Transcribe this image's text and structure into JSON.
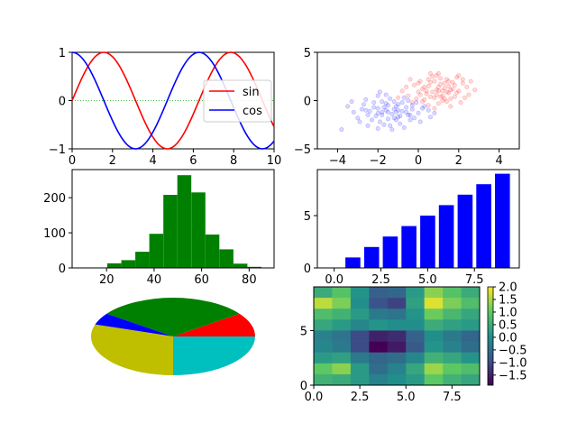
{
  "chart_data": [
    {
      "type": "line",
      "xlim": [
        0,
        10
      ],
      "ylim": [
        -1,
        1
      ],
      "x_ticks": [
        0,
        2,
        4,
        6,
        8,
        10
      ],
      "y_ticks": [
        -1,
        0,
        1
      ],
      "x_tick_labels": [
        "0",
        "2",
        "4",
        "6",
        "8",
        "10"
      ],
      "y_tick_labels": [
        "−1",
        "0",
        "1"
      ],
      "series": [
        {
          "name": "sin",
          "color": "#ff0000",
          "function": "sin",
          "x_start": 0,
          "x_end": 10,
          "samples": 101
        },
        {
          "name": "cos",
          "color": "#0000ff",
          "function": "cos",
          "x_start": 0,
          "x_end": 10,
          "samples": 101
        }
      ],
      "reference_line": {
        "y": 0,
        "color": "#00aa00",
        "style": "dotted"
      },
      "legend": {
        "position": "right",
        "entries": [
          "sin",
          "cos"
        ]
      },
      "grid": false
    },
    {
      "type": "scatter",
      "xlim": [
        -5,
        5
      ],
      "ylim": [
        -5,
        5
      ],
      "x_ticks": [
        -4,
        -2,
        0,
        2,
        4
      ],
      "y_ticks": [
        -5,
        0,
        5
      ],
      "x_tick_labels": [
        "−4",
        "−2",
        "0",
        "2",
        "4"
      ],
      "y_tick_labels": [
        "−5",
        "0",
        "5"
      ],
      "series": [
        {
          "color": "#ff0000",
          "points": [
            [
              1.0,
              1.0
            ],
            [
              0.5,
              1.5
            ],
            [
              1.5,
              0.8
            ],
            [
              0.8,
              2.0
            ],
            [
              1.2,
              0.5
            ],
            [
              0.2,
              1.2
            ],
            [
              1.8,
              1.6
            ],
            [
              0.6,
              0.4
            ],
            [
              1.4,
              2.2
            ],
            [
              0.9,
              1.1
            ],
            [
              0.0,
              0.9
            ],
            [
              1.1,
              1.7
            ],
            [
              2.0,
              1.0
            ],
            [
              0.3,
              0.1
            ],
            [
              1.6,
              0.2
            ],
            [
              0.7,
              2.5
            ],
            [
              1.3,
              1.3
            ],
            [
              -0.2,
              1.6
            ],
            [
              2.2,
              1.8
            ],
            [
              0.4,
              0.7
            ],
            [
              1.0,
              -0.3
            ],
            [
              1.7,
              1.2
            ],
            [
              0.1,
              2.0
            ],
            [
              2.5,
              0.6
            ],
            [
              -0.5,
              0.5
            ],
            [
              1.9,
              2.4
            ],
            [
              0.6,
              1.9
            ],
            [
              1.2,
              0.0
            ],
            [
              0.8,
              0.3
            ],
            [
              2.1,
              -0.2
            ],
            [
              1.5,
              1.5
            ],
            [
              -0.1,
              0.2
            ],
            [
              1.0,
              2.8
            ],
            [
              2.4,
              1.4
            ],
            [
              0.5,
              -0.5
            ],
            [
              1.4,
              0.9
            ],
            [
              0.9,
              0.6
            ],
            [
              -0.8,
              1.0
            ],
            [
              1.8,
              0.4
            ],
            [
              0.3,
              1.4
            ],
            [
              1.1,
              2.3
            ],
            [
              2.6,
              2.0
            ],
            [
              0.0,
              1.8
            ],
            [
              1.6,
              -0.6
            ],
            [
              0.7,
              0.9
            ],
            [
              1.3,
              0.2
            ],
            [
              -0.4,
              2.2
            ],
            [
              2.0,
              2.6
            ],
            [
              0.2,
              -0.1
            ],
            [
              1.7,
              1.9
            ],
            [
              1.5,
              2.0
            ],
            [
              0.4,
              1.0
            ],
            [
              2.3,
              0.3
            ],
            [
              1.0,
              1.4
            ],
            [
              -0.6,
              1.4
            ],
            [
              0.8,
              -0.8
            ],
            [
              1.9,
              0.8
            ],
            [
              0.6,
              2.8
            ],
            [
              1.2,
              1.0
            ],
            [
              2.8,
              1.1
            ],
            [
              -1.0,
              0.3
            ],
            [
              0.1,
              0.6
            ],
            [
              1.4,
              -0.1
            ],
            [
              0.9,
              2.6
            ],
            [
              1.6,
              1.1
            ],
            [
              -0.3,
              -0.2
            ],
            [
              2.2,
              2.2
            ],
            [
              0.5,
              2.2
            ],
            [
              1.1,
              0.4
            ],
            [
              1.3,
              1.8
            ]
          ]
        },
        {
          "color": "#0000ff",
          "points": [
            [
              -1.0,
              -1.0
            ],
            [
              -1.5,
              -0.5
            ],
            [
              -0.5,
              -1.5
            ],
            [
              -2.0,
              -0.8
            ],
            [
              -1.2,
              -1.8
            ],
            [
              -0.8,
              -0.2
            ],
            [
              -1.8,
              -1.2
            ],
            [
              -2.5,
              -1.5
            ],
            [
              -0.3,
              -0.9
            ],
            [
              -1.4,
              0.2
            ],
            [
              -1.1,
              -2.0
            ],
            [
              -2.2,
              -0.2
            ],
            [
              -0.6,
              -1.2
            ],
            [
              -1.7,
              -0.7
            ],
            [
              -0.9,
              -2.4
            ],
            [
              -2.8,
              -0.9
            ],
            [
              0.0,
              -1.3
            ],
            [
              -1.3,
              -1.4
            ],
            [
              -2.0,
              0.5
            ],
            [
              -0.4,
              -2.0
            ],
            [
              -1.6,
              -1.0
            ],
            [
              -3.0,
              -1.8
            ],
            [
              -0.7,
              0.3
            ],
            [
              -1.9,
              -2.2
            ],
            [
              -1.0,
              -0.4
            ],
            [
              -2.4,
              -1.1
            ],
            [
              0.3,
              -0.6
            ],
            [
              -1.2,
              -0.9
            ],
            [
              -3.5,
              -0.6
            ],
            [
              -0.2,
              -1.8
            ],
            [
              -1.5,
              -1.9
            ],
            [
              -2.6,
              0.1
            ],
            [
              -0.9,
              -1.6
            ],
            [
              -1.8,
              -0.1
            ],
            [
              0.5,
              -1.0
            ],
            [
              -2.1,
              -1.6
            ],
            [
              -1.4,
              -2.6
            ],
            [
              -0.5,
              0.0
            ],
            [
              -3.2,
              -1.2
            ],
            [
              -1.1,
              -0.6
            ],
            [
              -2.3,
              -2.0
            ],
            [
              0.1,
              -2.2
            ],
            [
              -1.6,
              0.6
            ],
            [
              -0.8,
              -1.1
            ],
            [
              -2.7,
              -0.4
            ],
            [
              -1.3,
              -3.0
            ],
            [
              -0.1,
              -0.2
            ],
            [
              -2.0,
              -1.3
            ],
            [
              -1.7,
              -2.5
            ],
            [
              0.6,
              -1.7
            ],
            [
              -2.9,
              -2.2
            ],
            [
              -0.6,
              -0.7
            ],
            [
              -1.9,
              0.9
            ],
            [
              -1.0,
              -1.7
            ],
            [
              -3.8,
              -3.0
            ],
            [
              -0.4,
              -1.5
            ],
            [
              -2.2,
              -0.7
            ],
            [
              -1.5,
              -1.2
            ],
            [
              0.2,
              -0.8
            ],
            [
              -1.2,
              -0.1
            ],
            [
              -2.5,
              -2.6
            ],
            [
              -0.7,
              -2.8
            ],
            [
              -1.8,
              -1.5
            ],
            [
              -3.3,
              -0.1
            ],
            [
              -1.1,
              -1.2
            ],
            [
              0.8,
              -1.3
            ],
            [
              -2.0,
              -2.9
            ],
            [
              -0.3,
              -0.5
            ],
            [
              -1.6,
              -0.3
            ],
            [
              -2.6,
              -1.0
            ]
          ]
        }
      ],
      "grid": false
    },
    {
      "type": "bar",
      "subtype": "histogram",
      "color": "#008000",
      "xlim": [
        5.5,
        90.5
      ],
      "ylim": [
        0,
        280
      ],
      "x_ticks": [
        20,
        40,
        60,
        80
      ],
      "y_ticks": [
        0,
        100,
        200
      ],
      "x_tick_labels": [
        "20",
        "40",
        "60",
        "80"
      ],
      "y_tick_labels": [
        "0",
        "100",
        "200"
      ],
      "bins": [
        {
          "x0": 20.3,
          "x1": 26.2,
          "count": 13
        },
        {
          "x0": 26.2,
          "x1": 32.1,
          "count": 22
        },
        {
          "x0": 32.1,
          "x1": 38.0,
          "count": 46
        },
        {
          "x0": 38.0,
          "x1": 43.9,
          "count": 97
        },
        {
          "x0": 43.9,
          "x1": 49.8,
          "count": 208
        },
        {
          "x0": 49.8,
          "x1": 55.7,
          "count": 264
        },
        {
          "x0": 55.7,
          "x1": 61.6,
          "count": 215
        },
        {
          "x0": 61.6,
          "x1": 67.5,
          "count": 95
        },
        {
          "x0": 67.5,
          "x1": 73.4,
          "count": 53
        },
        {
          "x0": 73.4,
          "x1": 79.3,
          "count": 12
        },
        {
          "x0": 79.3,
          "x1": 85.2,
          "count": 3
        }
      ],
      "grid": false
    },
    {
      "type": "bar",
      "color": "#0000ff",
      "xlim": [
        -0.9,
        9.9
      ],
      "ylim": [
        0,
        9.4
      ],
      "x_ticks": [
        0,
        2.5,
        5,
        7.5
      ],
      "y_ticks": [
        0,
        5
      ],
      "x_tick_labels": [
        "0.0",
        "2.5",
        "5.0",
        "7.5"
      ],
      "y_tick_labels": [
        "0",
        "5"
      ],
      "categories": [
        0,
        1,
        2,
        3,
        4,
        5,
        6,
        7,
        8,
        9
      ],
      "values": [
        0,
        1,
        2,
        3,
        4,
        5,
        6,
        7,
        8,
        9
      ],
      "bar_width": 0.8,
      "grid": false
    },
    {
      "type": "pie",
      "slices": [
        {
          "value": 10,
          "color": "#ff0000"
        },
        {
          "value": 30,
          "color": "#008000"
        },
        {
          "value": 5,
          "color": "#0000ff"
        },
        {
          "value": 30,
          "color": "#bfbf00"
        },
        {
          "value": 25,
          "color": "#00bfbf"
        }
      ],
      "start_angle_deg": 0,
      "aspect": "stretched-ellipse"
    },
    {
      "type": "heatmap",
      "xlim": [
        0,
        9
      ],
      "ylim": [
        0,
        9
      ],
      "x_ticks": [
        0,
        2.5,
        5,
        7.5
      ],
      "y_ticks": [
        0,
        5
      ],
      "x_tick_labels": [
        "0.0",
        "2.5",
        "5.0",
        "7.5"
      ],
      "y_tick_labels": [
        "0",
        "5"
      ],
      "rows_top_to_bottom": [
        [
          0.5,
          0.9,
          0.1,
          -0.7,
          -0.6,
          0.2,
          1.3,
          0.9,
          0.5
        ],
        [
          1.6,
          1.2,
          0.0,
          -0.9,
          -1.1,
          0.3,
          1.8,
          1.2,
          0.8
        ],
        [
          0.8,
          0.6,
          0.2,
          -0.3,
          -0.4,
          0.1,
          1.1,
          0.7,
          0.4
        ],
        [
          0.4,
          0.2,
          -0.1,
          0.1,
          0.0,
          0.0,
          0.5,
          0.3,
          0.2
        ],
        [
          -0.2,
          -0.4,
          -1.0,
          -1.5,
          -1.4,
          -0.7,
          0.0,
          -0.3,
          -0.6
        ],
        [
          -0.1,
          -0.3,
          -1.0,
          -1.9,
          -1.6,
          -0.8,
          0.1,
          -0.2,
          -0.5
        ],
        [
          0.2,
          0.3,
          -0.3,
          -0.6,
          -0.5,
          -0.1,
          0.6,
          0.4,
          0.1
        ],
        [
          1.0,
          1.3,
          0.2,
          -0.5,
          -0.2,
          0.4,
          1.4,
          1.0,
          0.8
        ],
        [
          0.6,
          0.5,
          0.2,
          -0.2,
          0.0,
          0.2,
          1.0,
          0.6,
          0.4
        ]
      ],
      "colormap": "viridis",
      "vmin": -1.9,
      "vmax": 2.0,
      "colorbar_ticks": [
        -1.5,
        -1.0,
        -0.5,
        0.0,
        0.5,
        1.0,
        1.5,
        2.0
      ],
      "colorbar_tick_labels": [
        "−1.5",
        "−1.0",
        "−0.5",
        "0.0",
        "0.5",
        "1.0",
        "1.5",
        "2.0"
      ]
    }
  ]
}
